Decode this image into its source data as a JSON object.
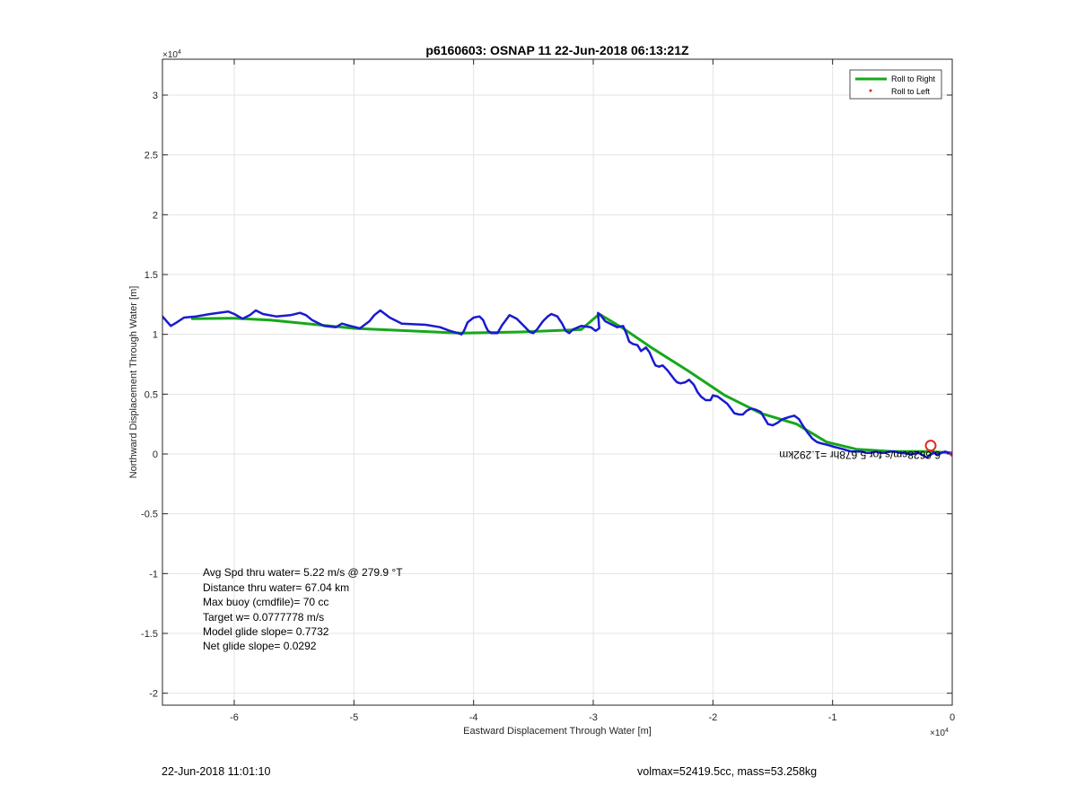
{
  "chart_data": {
    "type": "line",
    "title": "p6160603: OSNAP 11 22-Jun-2018 06:13:21Z",
    "xlabel": "Eastward Displacement Through Water [m]",
    "ylabel": "Northward Displacement Through Water [m]",
    "x_exponent": "×10",
    "y_exponent": "×10",
    "exponent_power": "4",
    "xlim": [
      -66000,
      0
    ],
    "ylim": [
      -21000,
      33000
    ],
    "x_ticks": [
      -60000,
      -50000,
      -40000,
      -30000,
      -20000,
      -10000,
      0
    ],
    "x_tick_labels": [
      "-6",
      "-5",
      "-4",
      "-3",
      "-2",
      "-1",
      "0"
    ],
    "y_ticks": [
      -20000,
      -15000,
      -10000,
      -5000,
      0,
      5000,
      10000,
      15000,
      20000,
      25000,
      30000
    ],
    "y_tick_labels": [
      "-2",
      "-1.5",
      "-1",
      "-0.5",
      "0",
      "0.5",
      "1",
      "1.5",
      "2",
      "2.5",
      "3"
    ],
    "grid": true,
    "legend_position": "top-right",
    "legend": [
      {
        "label": "Roll to Right",
        "color": "#16a81a",
        "style": "line"
      },
      {
        "label": "Roll to Left",
        "color": "#e8251e",
        "style": "dot"
      }
    ],
    "series": [
      {
        "name": "Roll to Right",
        "color": "#16a81a",
        "x": [
          -63500,
          -60000,
          -57000,
          -50000,
          -41000,
          -36000,
          -31000,
          -29500,
          -27500,
          -25000,
          -22000,
          -19000,
          -16000,
          -13000,
          -10500,
          -8000,
          -5000,
          -2000,
          0
        ],
        "y": [
          11300,
          11350,
          11200,
          10500,
          10100,
          10200,
          10400,
          11700,
          10500,
          8800,
          6900,
          4900,
          3400,
          2500,
          1000,
          400,
          200,
          200,
          100
        ]
      },
      {
        "color": "#1a1ad0",
        "x": [
          -66000,
          -65300,
          -64800,
          -64200,
          -63200,
          -62000,
          -60500,
          -60000,
          -59300,
          -58700,
          -58200,
          -57600,
          -56500,
          -55300,
          -54500,
          -54000,
          -53500,
          -52500,
          -51500,
          -51000,
          -50300,
          -49500,
          -48700,
          -48300,
          -47800,
          -47000,
          -46000,
          -44000,
          -42800,
          -42000,
          -41300,
          -41000,
          -40800,
          -40500,
          -40000,
          -39500,
          -39200,
          -39000,
          -38800,
          -38500,
          -38000,
          -37600,
          -37300,
          -37000,
          -36400,
          -35800,
          -35300,
          -35000,
          -34700,
          -34200,
          -33800,
          -33500,
          -33000,
          -32600,
          -32300,
          -32000,
          -31700,
          -31000,
          -30200,
          -29800,
          -29500,
          -29600,
          -29300,
          -29000,
          -28600,
          -28000,
          -27500,
          -27200,
          -27000,
          -26700,
          -26300,
          -26000,
          -25600,
          -25300,
          -25000,
          -24800,
          -24500,
          -24200,
          -23800,
          -23500,
          -23200,
          -23000,
          -22700,
          -22300,
          -22000,
          -21600,
          -21300,
          -21000,
          -20600,
          -20200,
          -20000,
          -19600,
          -19200,
          -18800,
          -18500,
          -18200,
          -17800,
          -17500,
          -17200,
          -16800,
          -16400,
          -16000,
          -15700,
          -15400,
          -15000,
          -14600,
          -14200,
          -13900,
          -13600,
          -13200,
          -12800,
          -12500,
          -12100,
          -11700,
          -11300,
          -11000,
          -10600,
          -10200,
          -9900,
          -9500,
          -9100,
          -8800,
          -8400,
          -8000,
          -7600,
          -7200,
          -6800,
          -6400,
          -6000,
          -5600,
          -5200,
          -4800,
          -4400,
          -4000,
          -3600,
          -3200,
          -2900,
          -2600,
          -2300,
          -2100,
          -1900,
          -1700,
          -1500,
          -1300,
          -1100,
          -900,
          -600,
          -300,
          0
        ],
        "y": [
          11500,
          10700,
          11000,
          11400,
          11500,
          11700,
          11900,
          11700,
          11300,
          11600,
          12000,
          11700,
          11500,
          11600,
          11800,
          11600,
          11200,
          10700,
          10600,
          10900,
          10700,
          10500,
          11100,
          11600,
          12000,
          11400,
          10900,
          10800,
          10600,
          10300,
          10100,
          10000,
          10300,
          11000,
          11400,
          11500,
          11200,
          10700,
          10300,
          10100,
          10100,
          10800,
          11200,
          11600,
          11300,
          10700,
          10200,
          10100,
          10400,
          11100,
          11500,
          11700,
          11500,
          10900,
          10300,
          10100,
          10400,
          10700,
          10600,
          10300,
          10500,
          11800,
          11500,
          11100,
          10900,
          10600,
          10700,
          10000,
          9400,
          9200,
          9100,
          8600,
          8900,
          8500,
          7800,
          7400,
          7300,
          7400,
          7000,
          6600,
          6200,
          6000,
          5900,
          6000,
          6200,
          5800,
          5200,
          4800,
          4500,
          4500,
          4900,
          4800,
          4500,
          4200,
          3800,
          3400,
          3300,
          3300,
          3600,
          3800,
          3700,
          3500,
          3000,
          2500,
          2400,
          2600,
          2900,
          3000,
          3100,
          3200,
          2900,
          2400,
          1800,
          1300,
          1000,
          900,
          800,
          700,
          600,
          500,
          400,
          300,
          200,
          200,
          200,
          100,
          100,
          200,
          100,
          100,
          200,
          200,
          100,
          50,
          0,
          0,
          100,
          0,
          -200,
          -300,
          -100,
          0,
          100,
          -50,
          0,
          100,
          200,
          100,
          0
        ]
      }
    ],
    "annotations": [
      "Avg Spd thru water=  5.22 m/s @ 279.9 °T",
      "Distance thru water= 67.04 km",
      "Max buoy (cmdfile)= 70 cc",
      "Target w= 0.0777778 m/s",
      "Model glide slope= 0.7732",
      "Net glide slope= 0.0292"
    ],
    "current_label": "6.6628cm/s for 5.678hr =1.292km"
  },
  "footer": {
    "timestamp": "22-Jun-2018 11:01:10",
    "volmax_mass": "volmax=52419.5cc, mass=53.258kg"
  }
}
